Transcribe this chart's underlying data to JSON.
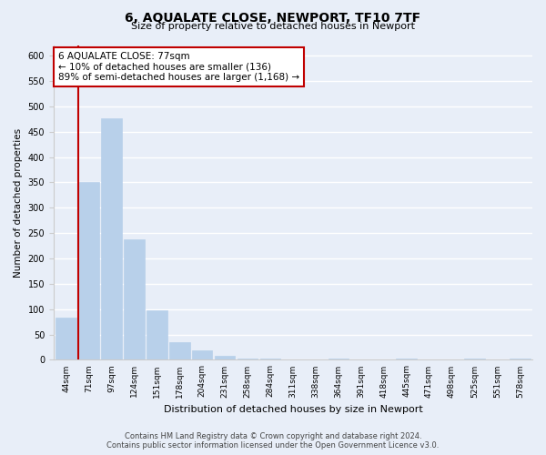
{
  "title": "6, AQUALATE CLOSE, NEWPORT, TF10 7TF",
  "subtitle": "Size of property relative to detached houses in Newport",
  "xlabel": "Distribution of detached houses by size in Newport",
  "ylabel": "Number of detached properties",
  "bar_labels": [
    "44sqm",
    "71sqm",
    "97sqm",
    "124sqm",
    "151sqm",
    "178sqm",
    "204sqm",
    "231sqm",
    "258sqm",
    "284sqm",
    "311sqm",
    "338sqm",
    "364sqm",
    "391sqm",
    "418sqm",
    "445sqm",
    "471sqm",
    "498sqm",
    "525sqm",
    "551sqm",
    "578sqm"
  ],
  "bar_values": [
    83,
    350,
    477,
    237,
    97,
    35,
    18,
    8,
    3,
    3,
    0,
    0,
    3,
    0,
    0,
    3,
    0,
    0,
    3,
    0,
    3
  ],
  "bar_color": "#b8d0ea",
  "highlight_color": "#c00000",
  "vline_bar_index": 1,
  "ylim": [
    0,
    620
  ],
  "yticks": [
    0,
    50,
    100,
    150,
    200,
    250,
    300,
    350,
    400,
    450,
    500,
    550,
    600
  ],
  "annotation_title": "6 AQUALATE CLOSE: 77sqm",
  "annotation_line1": "← 10% of detached houses are smaller (136)",
  "annotation_line2": "89% of semi-detached houses are larger (1,168) →",
  "annotation_box_facecolor": "#ffffff",
  "annotation_box_edgecolor": "#c00000",
  "footer_line1": "Contains HM Land Registry data © Crown copyright and database right 2024.",
  "footer_line2": "Contains public sector information licensed under the Open Government Licence v3.0.",
  "background_color": "#e8eef8",
  "grid_color": "#ffffff"
}
